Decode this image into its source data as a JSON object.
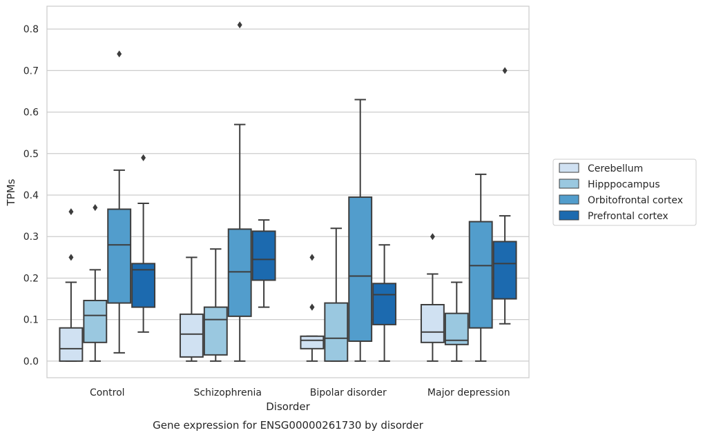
{
  "chart_data": {
    "type": "box",
    "title": "",
    "caption": "Gene expression for ENSG00000261730 by disorder",
    "xlabel": "Disorder",
    "ylabel": "TPMs",
    "ylim": [
      -0.04,
      0.855
    ],
    "yticks": [
      "0.0",
      "0.1",
      "0.2",
      "0.3",
      "0.4",
      "0.5",
      "0.6",
      "0.7",
      "0.8"
    ],
    "ytick_values": [
      0,
      0.1,
      0.2,
      0.3,
      0.4,
      0.5,
      0.6,
      0.7,
      0.8
    ],
    "grid": "horizontal",
    "legend_position": "right",
    "categories": [
      "Control",
      "Schizophrenia",
      "Bipolar disorder",
      "Major depression"
    ],
    "series": [
      {
        "name": "Cerebellum",
        "color": "#d0e1f2",
        "boxes": [
          {
            "whisker_low": 0.0,
            "q1": 0.0,
            "median": 0.03,
            "q3": 0.08,
            "whisker_high": 0.19,
            "outliers": [
              0.25,
              0.36
            ]
          },
          {
            "whisker_low": 0.0,
            "q1": 0.01,
            "median": 0.065,
            "q3": 0.113,
            "whisker_high": 0.25,
            "outliers": []
          },
          {
            "whisker_low": 0.0,
            "q1": 0.03,
            "median": 0.05,
            "q3": 0.06,
            "whisker_high": 0.06,
            "outliers": [
              0.13,
              0.13,
              0.25
            ]
          },
          {
            "whisker_low": 0.0,
            "q1": 0.045,
            "median": 0.07,
            "q3": 0.136,
            "whisker_high": 0.21,
            "outliers": [
              0.3
            ]
          }
        ]
      },
      {
        "name": "Hipppocampus",
        "color": "#9ac8e0",
        "boxes": [
          {
            "whisker_low": 0.0,
            "q1": 0.045,
            "median": 0.11,
            "q3": 0.146,
            "whisker_high": 0.22,
            "outliers": [
              0.37
            ]
          },
          {
            "whisker_low": 0.0,
            "q1": 0.015,
            "median": 0.1,
            "q3": 0.13,
            "whisker_high": 0.27,
            "outliers": []
          },
          {
            "whisker_low": 0.0,
            "q1": 0.0,
            "median": 0.055,
            "q3": 0.14,
            "whisker_high": 0.32,
            "outliers": []
          },
          {
            "whisker_low": 0.0,
            "q1": 0.04,
            "median": 0.05,
            "q3": 0.115,
            "whisker_high": 0.19,
            "outliers": []
          }
        ]
      },
      {
        "name": "Orbitofrontal cortex",
        "color": "#529dcc",
        "boxes": [
          {
            "whisker_low": 0.02,
            "q1": 0.14,
            "median": 0.28,
            "q3": 0.366,
            "whisker_high": 0.46,
            "outliers": [
              0.74
            ]
          },
          {
            "whisker_low": 0.0,
            "q1": 0.108,
            "median": 0.215,
            "q3": 0.318,
            "whisker_high": 0.57,
            "outliers": [
              0.81
            ]
          },
          {
            "whisker_low": 0.0,
            "q1": 0.048,
            "median": 0.205,
            "q3": 0.395,
            "whisker_high": 0.63,
            "outliers": []
          },
          {
            "whisker_low": 0.0,
            "q1": 0.08,
            "median": 0.23,
            "q3": 0.336,
            "whisker_high": 0.45,
            "outliers": []
          }
        ]
      },
      {
        "name": "Prefrontal cortex",
        "color": "#1c6aaf",
        "boxes": [
          {
            "whisker_low": 0.07,
            "q1": 0.13,
            "median": 0.22,
            "q3": 0.235,
            "whisker_high": 0.38,
            "outliers": [
              0.49
            ]
          },
          {
            "whisker_low": 0.13,
            "q1": 0.195,
            "median": 0.245,
            "q3": 0.313,
            "whisker_high": 0.34,
            "outliers": []
          },
          {
            "whisker_low": 0.0,
            "q1": 0.088,
            "median": 0.16,
            "q3": 0.187,
            "whisker_high": 0.28,
            "outliers": []
          },
          {
            "whisker_low": 0.09,
            "q1": 0.15,
            "median": 0.235,
            "q3": 0.288,
            "whisker_high": 0.35,
            "outliers": [
              0.7
            ]
          }
        ]
      }
    ]
  }
}
